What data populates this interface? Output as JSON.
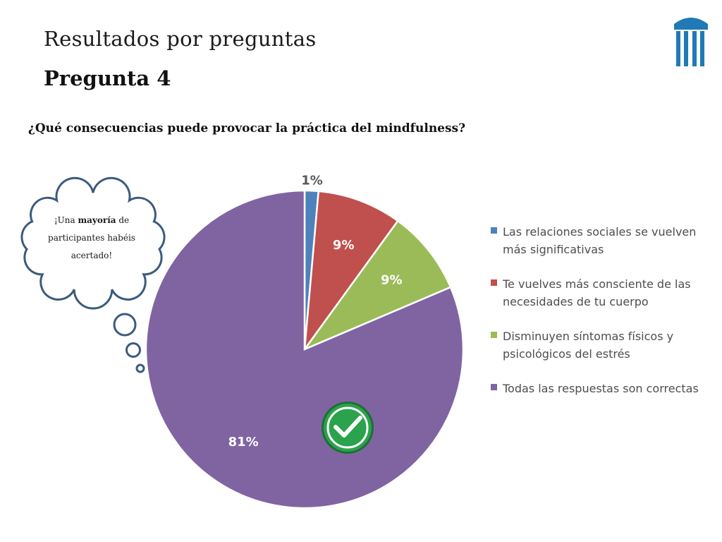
{
  "header": {
    "section_title": "Resultados por preguntas",
    "slide_title": "Pregunta 4"
  },
  "logo": {
    "icon": "columns-logo-icon",
    "color": "#1f7ab5"
  },
  "thought_bubble": {
    "text_before": "¡Una ",
    "text_bold": "mayoría",
    "text_after": " de participantes habéis acertado!",
    "outline_color": "#3b5b7e"
  },
  "badge": {
    "icon": "check-icon",
    "color": "#2ba24c"
  },
  "chart_data": {
    "type": "pie",
    "title": "¿Qué consecuencias puede provocar la práctica del mindfulness?",
    "slices": [
      {
        "label": "Las relaciones sociales se vuelven más significativas",
        "value": 1.4,
        "display": "1%",
        "color": "#4f81bd"
      },
      {
        "label": "Te vuelves más consciente de las necesidades de tu cuerpo",
        "value": 8.6,
        "display": "9%",
        "color": "#c0504d"
      },
      {
        "label": "Disminuyen síntomas físicos y psicológicos del estrés",
        "value": 8.6,
        "display": "9%",
        "color": "#9bbb59"
      },
      {
        "label": "Todas las respuestas son correctas",
        "value": 81.4,
        "display": "81%",
        "color": "#8064a2"
      }
    ],
    "legend_position": "right",
    "start_angle": "12 o'clock, clockwise",
    "correct_answer": "Todas las respuestas son correctas"
  }
}
